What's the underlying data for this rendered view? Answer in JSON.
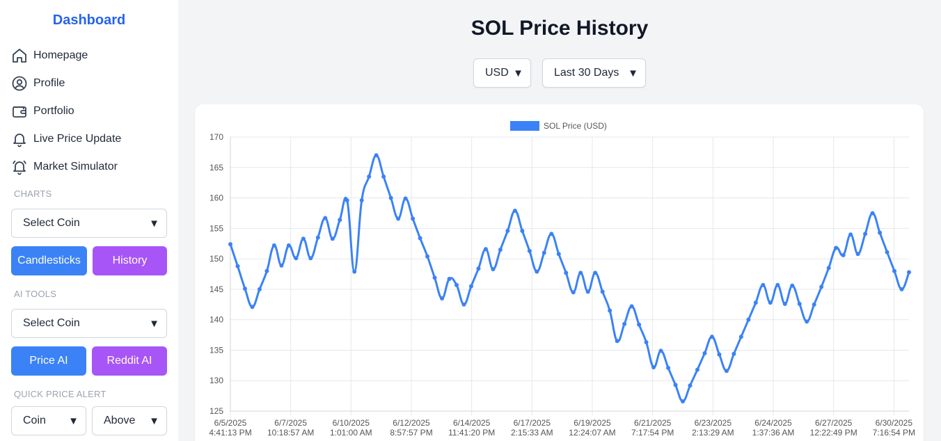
{
  "sidebar": {
    "brand": "Dashboard",
    "nav": [
      {
        "label": "Homepage",
        "icon": "home-icon"
      },
      {
        "label": "Profile",
        "icon": "user-circle-icon"
      },
      {
        "label": "Portfolio",
        "icon": "wallet-icon"
      },
      {
        "label": "Live Price Update",
        "icon": "bell-icon"
      },
      {
        "label": "Market Simulator",
        "icon": "bell-ring-icon"
      }
    ],
    "charts": {
      "label": "CHARTS",
      "coin_select": "Select Coin",
      "candlesticks_label": "Candlesticks",
      "history_label": "History"
    },
    "ai_tools": {
      "label": "AI TOOLS",
      "coin_select": "Select Coin",
      "price_ai_label": "Price AI",
      "reddit_ai_label": "Reddit AI"
    },
    "quick_alert": {
      "label": "QUICK PRICE ALERT",
      "coin_select": "Coin",
      "direction_select": "Above"
    }
  },
  "main": {
    "title": "SOL Price History",
    "currency_select": "USD",
    "range_select": "Last 30 Days"
  },
  "colors": {
    "accent_blue": "#3b82f6",
    "accent_purple": "#a855f7",
    "brand_blue": "#2563eb",
    "series_blue": "#3b82f6"
  },
  "chart_data": {
    "type": "line",
    "legend": "SOL Price (USD)",
    "legend_position": "top-center",
    "grid": true,
    "ylim": [
      125,
      170
    ],
    "yticks": [
      125,
      130,
      135,
      140,
      145,
      150,
      155,
      160,
      165,
      170
    ],
    "xtick_labels": [
      [
        "6/5/2025",
        "4:41:13 PM"
      ],
      [
        "6/7/2025",
        "10:18:57 AM"
      ],
      [
        "6/10/2025",
        "1:01:00 AM"
      ],
      [
        "6/12/2025",
        "8:57:57 PM"
      ],
      [
        "6/14/2025",
        "11:41:20 PM"
      ],
      [
        "6/17/2025",
        "2:15:33 AM"
      ],
      [
        "6/19/2025",
        "12:24:07 AM"
      ],
      [
        "6/21/2025",
        "7:17:54 PM"
      ],
      [
        "6/23/2025",
        "2:13:29 AM"
      ],
      [
        "6/24/2025",
        "1:37:36 AM"
      ],
      [
        "6/27/2025",
        "12:22:49 PM"
      ],
      [
        "6/30/2025",
        "7:16:54 PM"
      ]
    ],
    "series": [
      {
        "name": "SOL Price (USD)",
        "values": [
          152.4,
          148.8,
          145.1,
          142.1,
          145.0,
          148.0,
          152.2,
          148.9,
          152.2,
          150.1,
          153.3,
          150.1,
          153.5,
          156.7,
          153.3,
          156.4,
          159.6,
          147.9,
          159.6,
          163.5,
          167.0,
          163.5,
          160.0,
          156.6,
          159.9,
          156.6,
          153.4,
          150.4,
          146.9,
          143.5,
          146.7,
          145.7,
          142.5,
          145.5,
          148.4,
          151.6,
          148.3,
          151.5,
          154.6,
          157.9,
          154.6,
          151.3,
          147.9,
          151.0,
          154.1,
          150.8,
          147.7,
          144.5,
          147.7,
          144.6,
          147.7,
          144.6,
          141.5,
          136.5,
          139.3,
          142.2,
          139.2,
          136.3,
          132.2,
          134.9,
          132.1,
          129.3,
          126.6,
          129.2,
          131.8,
          134.5,
          137.2,
          134.3,
          131.6,
          134.4,
          137.2,
          140.0,
          142.8,
          145.7,
          142.8,
          145.7,
          142.6,
          145.6,
          142.6,
          139.7,
          142.5,
          145.4,
          148.5,
          151.8,
          150.6,
          154.0,
          150.8,
          154.1,
          157.5,
          154.3,
          151.1,
          148.0,
          145.0,
          147.8
        ]
      }
    ]
  }
}
